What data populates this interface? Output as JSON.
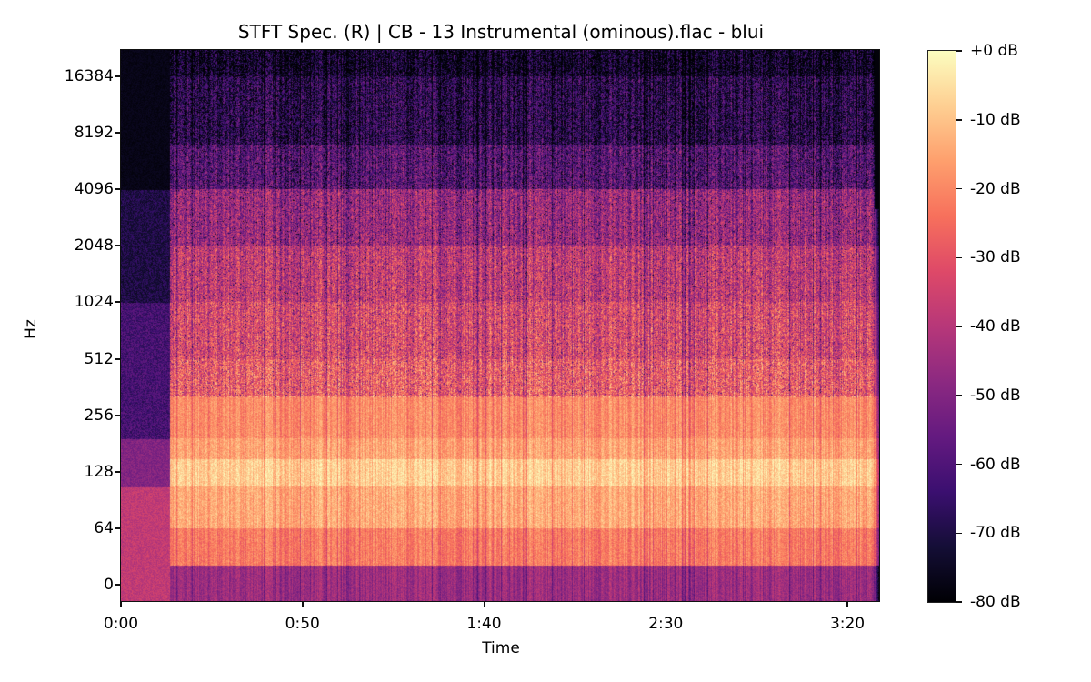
{
  "chart_data": {
    "type": "heatmap",
    "title": "STFT Spec. (R) | CB - 13 Instrumental (ominous).flac - blui",
    "xlabel": "Time",
    "ylabel": "Hz",
    "x_ticks": [
      "0:00",
      "0:50",
      "1:40",
      "2:30",
      "3:20"
    ],
    "x_tick_seconds": [
      0,
      50,
      100,
      150,
      200
    ],
    "x_range_seconds": [
      0,
      209
    ],
    "y_scale": "log2 (symlog)",
    "y_ticks": [
      "16384",
      "8192",
      "4096",
      "2048",
      "1024",
      "512",
      "256",
      "128",
      "64",
      "0"
    ],
    "y_tick_values": [
      16384,
      8192,
      4096,
      2048,
      1024,
      512,
      256,
      128,
      64,
      0
    ],
    "colormap": "magma",
    "colorbar": {
      "label_format": "%+2.0f dB",
      "ticks": [
        "+0 dB",
        "-10 dB",
        "-20 dB",
        "-30 dB",
        "-40 dB",
        "-50 dB",
        "-60 dB",
        "-70 dB",
        "-80 dB"
      ],
      "tick_values": [
        0,
        -10,
        -20,
        -30,
        -40,
        -50,
        -60,
        -70,
        -80
      ],
      "range": [
        -80,
        0
      ]
    },
    "music_start_seconds": 9,
    "music_end_seconds": 208,
    "intro_level_db": {
      "high_freq": -78,
      "mid_freq": -62,
      "low_freq": -38
    },
    "bands_db_by_frequency": [
      {
        "freq_range": "0-32 Hz",
        "mean_db": -45
      },
      {
        "freq_range": "32-64 Hz",
        "mean_db": -22
      },
      {
        "freq_range": "64-100 Hz",
        "mean_db": -14
      },
      {
        "freq_range": "100-160 Hz",
        "mean_db": -8
      },
      {
        "freq_range": "160-256 Hz",
        "mean_db": -17
      },
      {
        "freq_range": "256-512 Hz",
        "mean_db": -26
      },
      {
        "freq_range": "512-1024 Hz",
        "mean_db": -32
      },
      {
        "freq_range": "1024-2048 Hz",
        "mean_db": -38
      },
      {
        "freq_range": "2048-4096 Hz",
        "mean_db": -46
      },
      {
        "freq_range": "4096-8192 Hz",
        "mean_db": -60
      },
      {
        "freq_range": "8192-16384 Hz",
        "mean_db": -68
      },
      {
        "freq_range": "16384-22050 Hz",
        "mean_db": -75
      }
    ]
  },
  "axes": {
    "title": "STFT Spec. (R) | CB - 13 Instrumental (ominous).flac - blui",
    "xlabel": "Time",
    "ylabel": "Hz"
  }
}
